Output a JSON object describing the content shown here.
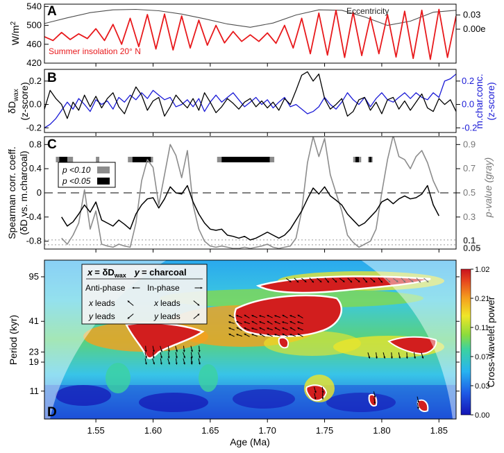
{
  "chart_data": [
    {
      "panel": "A",
      "type": "line",
      "ylabel": "W/m2",
      "ylabel_main": "W/m",
      "ylabel_sup": "2",
      "ylim": [
        420,
        545
      ],
      "yticks": [
        420,
        460,
        500,
        540
      ],
      "xlim": [
        1.505,
        1.865
      ],
      "series": [
        {
          "name": "Summer insolation 20° N",
          "color": "#e8191c",
          "x": [
            1.505,
            1.5125,
            1.52,
            1.5275,
            1.535,
            1.5425,
            1.55,
            1.5575,
            1.565,
            1.5725,
            1.58,
            1.5875,
            1.595,
            1.6025,
            1.61,
            1.6175,
            1.625,
            1.6325,
            1.64,
            1.6475,
            1.655,
            1.6625,
            1.67,
            1.6775,
            1.685,
            1.6925,
            1.7,
            1.7075,
            1.715,
            1.7225,
            1.73,
            1.7375,
            1.745,
            1.7525,
            1.76,
            1.7675,
            1.775,
            1.7825,
            1.79,
            1.7975,
            1.805,
            1.8125,
            1.82,
            1.8275,
            1.835,
            1.8425,
            1.85,
            1.8575,
            1.865
          ],
          "y": [
            476,
            468,
            485,
            470,
            482,
            472,
            493,
            468,
            502,
            460,
            515,
            455,
            523,
            450,
            524,
            448,
            520,
            452,
            511,
            458,
            500,
            463,
            487,
            466,
            480,
            466,
            484,
            462,
            500,
            452,
            515,
            440,
            526,
            437,
            532,
            432,
            528,
            436,
            518,
            440,
            523,
            433,
            530,
            430,
            532,
            428,
            534,
            432,
            520
          ]
        },
        {
          "name": "Eccentricity",
          "color": "#4d4d4d",
          "x": [
            1.505,
            1.525,
            1.545,
            1.565,
            1.585,
            1.605,
            1.625,
            1.645,
            1.665,
            1.685,
            1.705,
            1.725,
            1.745,
            1.765,
            1.785,
            1.805,
            1.825,
            1.845,
            1.865
          ],
          "y": [
            504,
            516,
            527,
            533,
            534,
            531,
            524,
            514,
            503,
            496,
            505,
            522,
            533,
            532,
            518,
            500,
            509,
            528,
            532
          ]
        }
      ],
      "right_axis": {
        "ticks": [
          "0.03",
          "0.00e"
        ],
        "tick_values": [
          0.03,
          0.0
        ],
        "tick_y": [
          522,
          492
        ]
      }
    },
    {
      "panel": "B",
      "type": "line",
      "ylabel_line1": "δD",
      "ylabel_sub": "wax",
      "ylabel_line2": "(z-score)",
      "right_label_line1": "m.char.conc.",
      "right_label_line2": "(z-score)",
      "ylim": [
        -0.24,
        0.3
      ],
      "yticks": [
        -0.2,
        0.0,
        0.2
      ],
      "ytick_labels": [
        "-0.2",
        "0.0",
        "0.2"
      ],
      "right_ticks": [
        "-0.2",
        "0.0",
        "0.2"
      ],
      "xlim": [
        1.505,
        1.865
      ],
      "series": [
        {
          "name": "δDwax",
          "color": "#000000",
          "x": [
            1.505,
            1.51,
            1.515,
            1.52,
            1.525,
            1.53,
            1.535,
            1.54,
            1.545,
            1.55,
            1.555,
            1.56,
            1.565,
            1.57,
            1.575,
            1.58,
            1.585,
            1.59,
            1.595,
            1.6,
            1.605,
            1.61,
            1.615,
            1.62,
            1.625,
            1.63,
            1.635,
            1.64,
            1.645,
            1.65,
            1.655,
            1.66,
            1.665,
            1.67,
            1.675,
            1.68,
            1.685,
            1.69,
            1.695,
            1.7,
            1.705,
            1.71,
            1.715,
            1.72,
            1.725,
            1.73,
            1.735,
            1.74,
            1.745,
            1.75,
            1.755,
            1.76,
            1.765,
            1.77,
            1.775,
            1.78,
            1.785,
            1.79,
            1.795,
            1.8,
            1.805,
            1.81,
            1.815,
            1.82,
            1.825,
            1.83,
            1.835,
            1.84,
            1.845,
            1.85,
            1.855,
            1.86,
            1.865
          ],
          "y": [
            -0.04,
            0.12,
            0.05,
            0.0,
            -0.12,
            0.02,
            -0.05,
            0.08,
            -0.02,
            0.07,
            -0.03,
            0.05,
            0.1,
            -0.02,
            -0.08,
            0.04,
            0.15,
            0.08,
            -0.05,
            0.03,
            0.06,
            -0.1,
            -0.02,
            0.08,
            0.02,
            -0.03,
            0.05,
            -0.05,
            0.1,
            0.02,
            -0.07,
            -0.02,
            0.05,
            0.01,
            -0.04,
            0.02,
            0.05,
            -0.02,
            0.03,
            -0.03,
            0.02,
            -0.05,
            0.05,
            0.0,
            0.12,
            0.25,
            0.28,
            0.2,
            0.26,
            0.05,
            -0.04,
            0.0,
            0.05,
            -0.1,
            -0.06,
            0.04,
            0.06,
            -0.05,
            0.02,
            -0.08,
            0.04,
            0.06,
            -0.04,
            0.03,
            -0.05,
            0.02,
            0.09,
            -0.03,
            -0.06,
            0.05,
            0.0,
            0.04,
            -0.06
          ]
        },
        {
          "name": "m.char.conc.",
          "color": "#1a1ad6",
          "x": [
            1.505,
            1.51,
            1.515,
            1.52,
            1.525,
            1.53,
            1.535,
            1.54,
            1.545,
            1.55,
            1.555,
            1.56,
            1.565,
            1.57,
            1.575,
            1.58,
            1.585,
            1.59,
            1.595,
            1.6,
            1.605,
            1.61,
            1.615,
            1.62,
            1.625,
            1.63,
            1.635,
            1.64,
            1.645,
            1.65,
            1.655,
            1.66,
            1.665,
            1.67,
            1.675,
            1.68,
            1.685,
            1.69,
            1.695,
            1.7,
            1.705,
            1.71,
            1.715,
            1.72,
            1.725,
            1.73,
            1.735,
            1.74,
            1.745,
            1.75,
            1.755,
            1.76,
            1.765,
            1.77,
            1.775,
            1.78,
            1.785,
            1.79,
            1.795,
            1.8,
            1.805,
            1.81,
            1.815,
            1.82,
            1.825,
            1.83,
            1.835,
            1.84,
            1.845,
            1.85,
            1.855,
            1.86,
            1.865
          ],
          "y": [
            -0.2,
            -0.17,
            -0.12,
            -0.05,
            0.02,
            -0.04,
            0.05,
            0.0,
            -0.06,
            0.04,
            0.0,
            0.03,
            -0.04,
            0.06,
            0.02,
            0.08,
            0.04,
            0.1,
            0.05,
            0.12,
            0.08,
            0.04,
            0.06,
            -0.02,
            0.0,
            0.04,
            -0.02,
            0.05,
            -0.06,
            0.02,
            0.08,
            0.02,
            0.06,
            0.1,
            0.04,
            -0.02,
            0.02,
            0.06,
            0.0,
            0.04,
            -0.03,
            0.02,
            0.06,
            -0.02,
            0.0,
            -0.04,
            -0.08,
            -0.06,
            -0.02,
            0.06,
            0.0,
            -0.04,
            0.02,
            0.1,
            0.04,
            0.0,
            0.06,
            -0.02,
            0.05,
            0.1,
            0.04,
            0.02,
            0.06,
            0.1,
            0.05,
            0.1,
            0.06,
            0.04,
            0.1,
            0.06,
            0.2,
            0.22,
            0.26
          ]
        }
      ]
    },
    {
      "panel": "C",
      "type": "line",
      "ylabel_line1": "Spearman corr. coeff.",
      "ylabel_line2": "(δD vs. m.charcoal)",
      "right_label": "p-value (gray)",
      "ylim": [
        -0.93,
        0.93
      ],
      "yticks": [
        -0.8,
        -0.4,
        0.0,
        0.4,
        0.8
      ],
      "ytick_labels": [
        "-0.8",
        "-0.4",
        "0",
        "0.4",
        "0.8"
      ],
      "right_ticks": [
        "0.9",
        "0.7",
        "0.5",
        "0.3"
      ],
      "right_ticks_bold": [
        "0.1",
        "0.05"
      ],
      "xlim": [
        1.505,
        1.865
      ],
      "legend": {
        "gray_label": "p <0.10",
        "black_label": "p <0.05",
        "placement": "top-left"
      },
      "significance_bars": {
        "gray": [
          [
            1.515,
            1.53
          ],
          [
            1.55,
            1.553
          ],
          [
            1.578,
            1.6
          ],
          [
            1.656,
            1.706
          ],
          [
            1.775,
            1.782
          ],
          [
            1.788,
            1.792
          ]
        ],
        "black": [
          [
            1.518,
            1.525
          ],
          [
            1.582,
            1.598
          ],
          [
            1.66,
            1.702
          ],
          [
            1.777,
            1.78
          ],
          [
            1.789,
            1.791
          ]
        ]
      },
      "series": [
        {
          "name": "Spearman correlation",
          "color": "#000000",
          "x": [
            1.52,
            1.525,
            1.53,
            1.535,
            1.54,
            1.545,
            1.55,
            1.555,
            1.56,
            1.565,
            1.57,
            1.575,
            1.58,
            1.585,
            1.59,
            1.595,
            1.6,
            1.605,
            1.61,
            1.615,
            1.62,
            1.625,
            1.63,
            1.635,
            1.64,
            1.645,
            1.65,
            1.655,
            1.66,
            1.665,
            1.67,
            1.675,
            1.68,
            1.685,
            1.69,
            1.695,
            1.7,
            1.705,
            1.71,
            1.715,
            1.72,
            1.725,
            1.73,
            1.735,
            1.74,
            1.745,
            1.75,
            1.755,
            1.76,
            1.765,
            1.77,
            1.775,
            1.78,
            1.785,
            1.79,
            1.795,
            1.8,
            1.805,
            1.81,
            1.815,
            1.82,
            1.825,
            1.83,
            1.835,
            1.84,
            1.845,
            1.85
          ],
          "y": [
            -0.4,
            -0.55,
            -0.48,
            -0.35,
            -0.2,
            -0.32,
            -0.15,
            -0.45,
            -0.5,
            -0.55,
            -0.45,
            -0.52,
            -0.6,
            -0.35,
            -0.2,
            -0.1,
            -0.08,
            -0.25,
            -0.1,
            0.1,
            0.0,
            -0.02,
            0.12,
            -0.15,
            -0.35,
            -0.5,
            -0.6,
            -0.62,
            -0.6,
            -0.7,
            -0.72,
            -0.75,
            -0.72,
            -0.78,
            -0.75,
            -0.7,
            -0.65,
            -0.7,
            -0.75,
            -0.7,
            -0.6,
            -0.45,
            -0.3,
            -0.1,
            0.08,
            -0.02,
            0.1,
            -0.05,
            -0.12,
            -0.2,
            -0.35,
            -0.45,
            -0.55,
            -0.5,
            -0.4,
            -0.3,
            -0.15,
            -0.1,
            -0.18,
            -0.1,
            -0.05,
            -0.1,
            -0.08,
            -0.02,
            0.12,
            -0.2,
            -0.38
          ]
        },
        {
          "name": "p-value",
          "color": "#8c8c8c",
          "x": [
            1.52,
            1.525,
            1.53,
            1.535,
            1.54,
            1.545,
            1.55,
            1.555,
            1.56,
            1.565,
            1.57,
            1.575,
            1.58,
            1.585,
            1.59,
            1.595,
            1.6,
            1.605,
            1.61,
            1.615,
            1.62,
            1.625,
            1.63,
            1.635,
            1.64,
            1.645,
            1.65,
            1.655,
            1.66,
            1.665,
            1.67,
            1.675,
            1.68,
            1.685,
            1.69,
            1.695,
            1.7,
            1.705,
            1.71,
            1.715,
            1.72,
            1.725,
            1.73,
            1.735,
            1.74,
            1.745,
            1.75,
            1.755,
            1.76,
            1.765,
            1.77,
            1.775,
            1.78,
            1.785,
            1.79,
            1.795,
            1.8,
            1.805,
            1.81,
            1.815,
            1.82,
            1.825,
            1.83,
            1.835,
            1.84,
            1.845,
            1.85
          ],
          "y": [
            -0.75,
            -0.85,
            -0.7,
            -0.5,
            0.05,
            -0.6,
            -0.3,
            -0.85,
            -0.88,
            -0.9,
            -0.85,
            -0.88,
            -0.9,
            -0.5,
            0.2,
            0.55,
            0.42,
            -0.2,
            0.3,
            0.8,
            0.62,
            0.25,
            0.7,
            -0.2,
            -0.6,
            -0.8,
            -0.88,
            -0.9,
            -0.88,
            -0.9,
            -0.92,
            -0.92,
            -0.9,
            -0.92,
            -0.9,
            -0.88,
            -0.85,
            -0.9,
            -0.92,
            -0.9,
            -0.88,
            -0.75,
            -0.3,
            0.5,
            0.93,
            0.6,
            0.9,
            0.3,
            0.0,
            -0.3,
            -0.7,
            -0.82,
            -0.9,
            -0.85,
            -0.8,
            -0.6,
            0.0,
            0.55,
            0.95,
            0.6,
            0.55,
            0.4,
            0.6,
            0.7,
            0.5,
            0.2,
            0.0
          ]
        }
      ]
    },
    {
      "panel": "D",
      "type": "heatmap",
      "title": "",
      "xlabel": "Age (Ma)",
      "ylabel": "Period (kyr)",
      "xlim": [
        1.505,
        1.865
      ],
      "xticks": [
        1.55,
        1.6,
        1.65,
        1.7,
        1.75,
        1.8,
        1.85
      ],
      "xtick_labels": [
        "1.55",
        "1.60",
        "1.65",
        "1.70",
        "1.75",
        "1.80",
        "1.85"
      ],
      "yticks": [
        11,
        19,
        23,
        41,
        95
      ],
      "ytick_labels": [
        "11",
        "19",
        "23",
        "41",
        "95"
      ],
      "ylim_log": [
        6.5,
        130
      ],
      "colorbar": {
        "label": "Cross-wavelet power",
        "ticks": [
          "1.02",
          "0.21",
          "0.11",
          "0.07",
          "0.03",
          "0.00"
        ]
      },
      "phase_legend": {
        "title_x": "x",
        "title_delta": "= δD",
        "title_sub": "wax",
        "title_y": "y",
        "title_y_rest": "= charcoal",
        "anti_phase": "Anti-phase",
        "in_phase": "In-phase",
        "x_leads_left": "x",
        "x_leads_left_rest": "leads",
        "y_leads_left": "y",
        "y_leads_left_rest": "leads",
        "x_leads_right": "x",
        "x_leads_right_rest": "leads",
        "y_leads_right": "y",
        "y_leads_right_rest": "leads"
      },
      "significant_regions": [
        {
          "x": [
            1.59,
            1.645
          ],
          "period": [
            17,
            26
          ]
        },
        {
          "x": [
            1.665,
            1.735
          ],
          "period": [
            30,
            48
          ]
        },
        {
          "x": [
            1.715,
            1.845
          ],
          "period": [
            78,
            95
          ]
        },
        {
          "x": [
            1.738,
            1.752
          ],
          "period": [
            9.5,
            12
          ]
        },
        {
          "x": [
            1.785,
            1.84
          ],
          "period": [
            19,
            23
          ]
        },
        {
          "x": [
            1.63,
            1.64
          ],
          "period": [
            18,
            21
          ]
        },
        {
          "x": [
            1.79,
            1.8
          ],
          "period": [
            8.5,
            11
          ]
        },
        {
          "x": [
            1.828,
            1.838
          ],
          "period": [
            8,
            10
          ]
        }
      ]
    }
  ],
  "labels": {
    "panel_a": "A",
    "panel_b": "B",
    "panel_c": "C",
    "panel_d": "D",
    "eccentricity": "Eccentricity",
    "insolation": "Summer insolation 20° N"
  }
}
